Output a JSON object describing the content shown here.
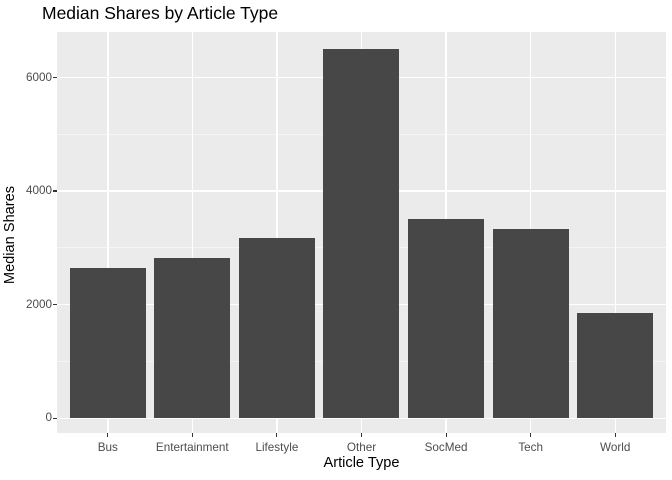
{
  "chart_data": {
    "type": "bar",
    "title": "Median Shares by Article Type",
    "xlabel": "Article Type",
    "ylabel": "Median Shares",
    "categories": [
      "Bus",
      "Entertainment",
      "Lifestyle",
      "Other",
      "SocMed",
      "Tech",
      "World"
    ],
    "values": [
      2650,
      2820,
      3170,
      6500,
      3500,
      3340,
      1850
    ],
    "yticks_major": [
      0,
      2000,
      4000,
      6000
    ],
    "yticks_minor": [
      1000,
      3000,
      5000
    ],
    "ylim": [
      0,
      6800
    ],
    "axis_range": [
      -260,
      6800
    ],
    "grid": true,
    "legend_position": "none",
    "bar_width_ratio": 0.9,
    "colors": {
      "bar_fill": "#474747",
      "panel_bg": "#EBEBEB",
      "figure_bg": "#FFFFFF",
      "grid_major": "#FFFFFF",
      "grid_minor": "#F5F5F5",
      "tick_mark": "#333333",
      "tick_label": "#4D4D4D",
      "title_text": "#000000"
    }
  }
}
